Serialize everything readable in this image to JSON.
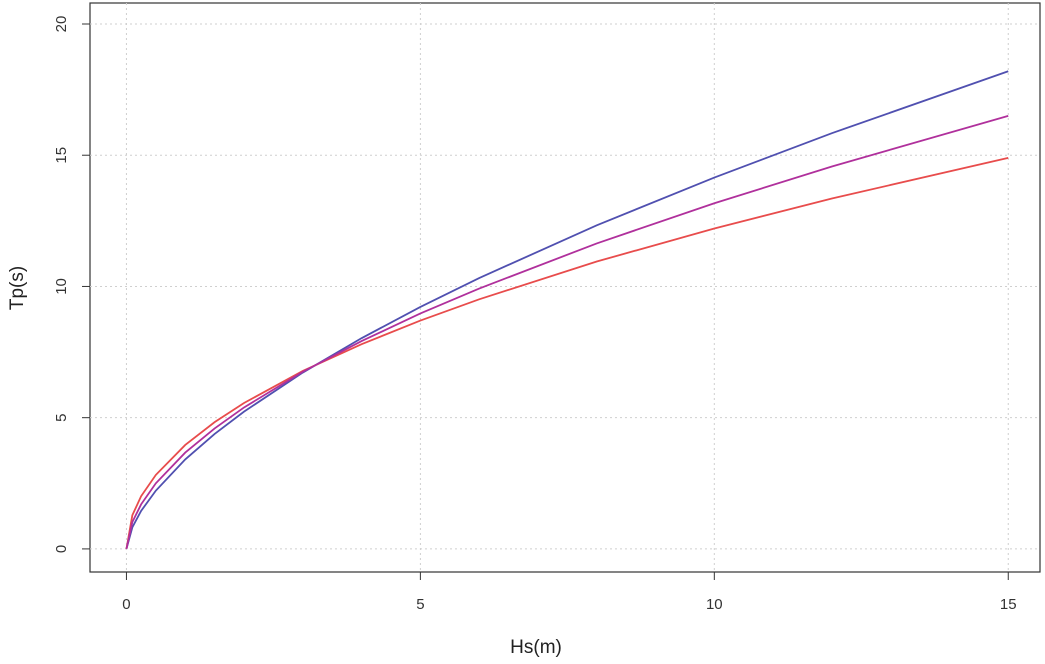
{
  "chart_data": {
    "type": "line",
    "x_label": "Hs(m)",
    "y_label": "Tp(s)",
    "x": [
      0,
      0.1,
      0.25,
      0.5,
      1,
      1.5,
      2,
      3,
      4,
      5,
      6,
      8,
      10,
      12,
      15
    ],
    "series": [
      {
        "color": "#5050b0",
        "values": [
          0,
          0.82,
          1.45,
          2.22,
          3.41,
          4.38,
          5.23,
          6.72,
          8.03,
          9.22,
          10.32,
          12.33,
          14.15,
          15.84,
          18.2
        ]
      },
      {
        "color": "#e84c4c",
        "values": [
          0,
          1.28,
          2.01,
          2.82,
          3.96,
          4.83,
          5.56,
          6.78,
          7.8,
          8.7,
          9.51,
          10.95,
          12.21,
          13.35,
          14.9
        ]
      },
      {
        "color": "#b0309c",
        "values": [
          0,
          1.02,
          1.7,
          2.5,
          3.67,
          4.59,
          5.39,
          6.75,
          7.92,
          8.97,
          9.92,
          11.64,
          13.17,
          14.57,
          16.5
        ]
      }
    ],
    "xlim": [
      -0.62,
      15.54
    ],
    "ylim": [
      -0.88,
      20.8
    ],
    "xticks": [
      0,
      5,
      10,
      15
    ],
    "yticks": [
      0,
      5,
      10,
      15,
      20
    ],
    "grid": true
  }
}
